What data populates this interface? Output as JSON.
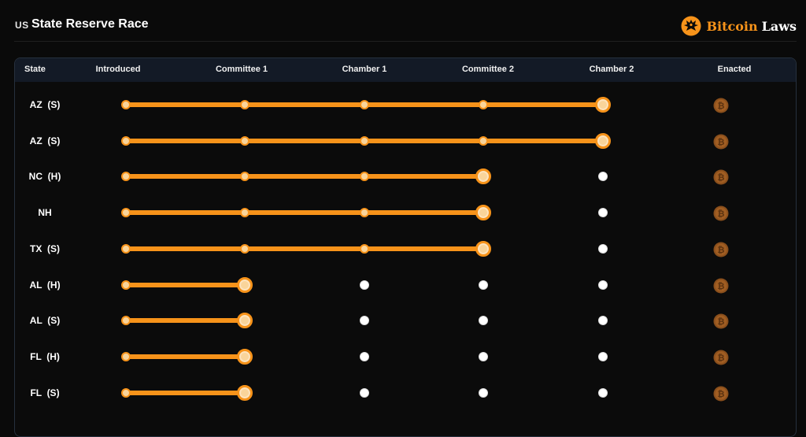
{
  "header": {
    "flag": "US",
    "title": "State Reserve Race",
    "brand_word1": "Bitcoin",
    "brand_word2": "Laws",
    "brand_logo_icon": "eagle-logo-icon"
  },
  "table": {
    "columns": [
      "State",
      "Introduced",
      "Committee 1",
      "Chamber 1",
      "Committee 2",
      "Chamber 2",
      "Enacted"
    ],
    "rows": [
      {
        "state": "AZ  (S)",
        "progress": 5
      },
      {
        "state": "AZ  (S)",
        "progress": 5
      },
      {
        "state": "NC  (H)",
        "progress": 4
      },
      {
        "state": "NH",
        "progress": 4
      },
      {
        "state": "TX  (S)",
        "progress": 4
      },
      {
        "state": "AL  (H)",
        "progress": 2
      },
      {
        "state": "AL  (S)",
        "progress": 2
      },
      {
        "state": "FL  (H)",
        "progress": 2
      },
      {
        "state": "FL  (S)",
        "progress": 2
      }
    ],
    "stage_count": 5,
    "enacted_icon": "bitcoin-coin-icon"
  },
  "colors": {
    "background": "#0a0a0a",
    "header_row": "#131a26",
    "accent": "#f7931a",
    "coin": "#8a4f1c",
    "todo_dot": "#ffffff"
  }
}
